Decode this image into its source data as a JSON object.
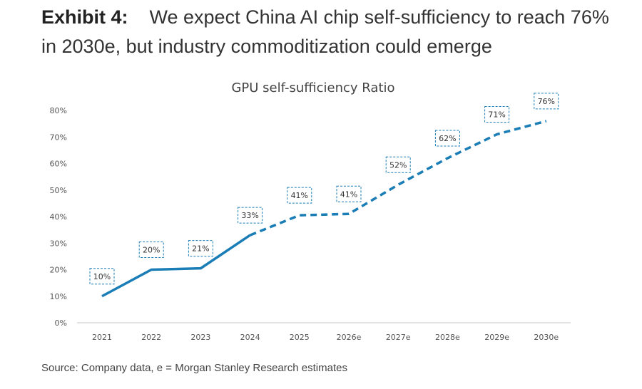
{
  "exhibit_label": "Exhibit 4:",
  "headline": "We expect China AI chip self-sufficiency to reach 76% in 2030e, but industry commoditization could emerge",
  "source": "Source: Company data, e = Morgan Stanley Research estimates",
  "chart_data": {
    "type": "line",
    "title": "GPU self-sufficiency Ratio",
    "categories": [
      "2021",
      "2022",
      "2023",
      "2024",
      "2025",
      "2026e",
      "2027e",
      "2028e",
      "2029e",
      "2030e"
    ],
    "series": [
      {
        "values": [
          10,
          20,
          20.5,
          33,
          40.5,
          41,
          52,
          62,
          71,
          76
        ],
        "data_labels": [
          "10%",
          "20%",
          "21%",
          "33%",
          "41%",
          "41%",
          "52%",
          "62%",
          "71%",
          "76%"
        ]
      }
    ],
    "line_style": "solid through 2024, dashed for 2025 onward",
    "ylim": [
      0,
      80
    ],
    "yticks": [
      "0%",
      "10%",
      "20%",
      "30%",
      "40%",
      "50%",
      "60%",
      "70%",
      "80%"
    ],
    "grid": false,
    "color": "#1a7db5"
  }
}
